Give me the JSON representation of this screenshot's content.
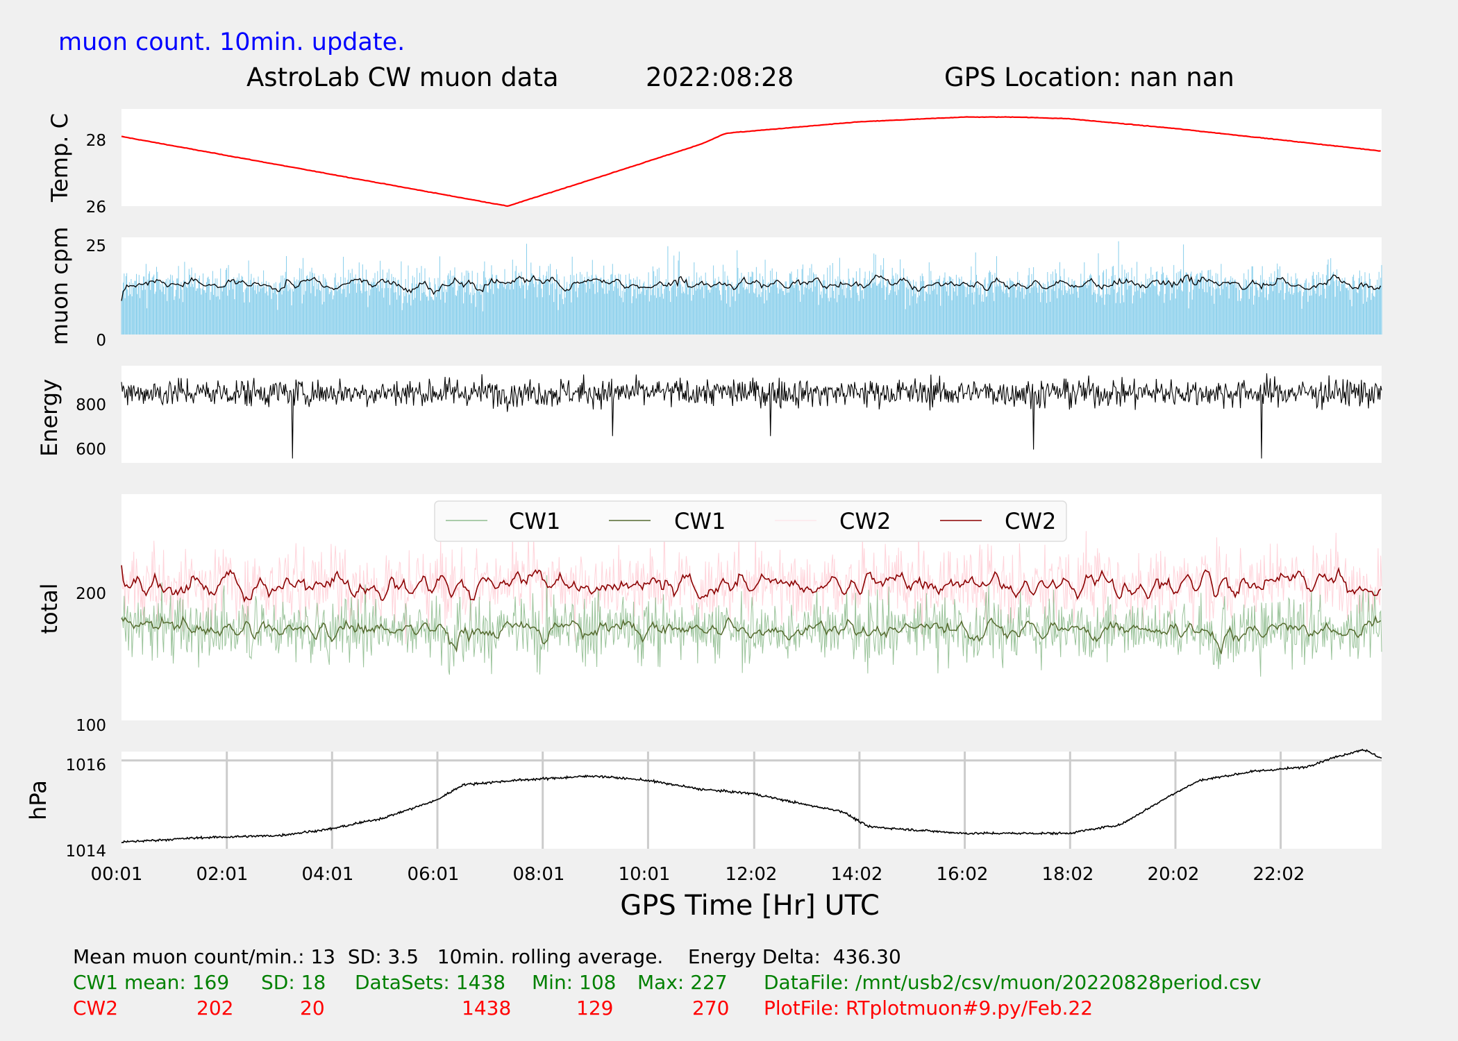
{
  "header": {
    "update_note": "muon count.  10min. update.",
    "title_left": "AstroLab CW muon data",
    "title_date": "2022:08:28",
    "title_gps": "GPS Location: nan   nan"
  },
  "xaxis": {
    "label": "GPS Time  [Hr] UTC",
    "ticks": [
      "00:01",
      "02:01",
      "04:01",
      "06:01",
      "08:01",
      "10:01",
      "12:02",
      "14:02",
      "16:02",
      "18:02",
      "20:02",
      "22:02"
    ]
  },
  "footer": {
    "line1": "Mean muon count/min.: 13  SD: 3.5   10min. rolling average.    Energy Delta:  436.30",
    "cw1_mean": "CW1 mean: 169",
    "cw1_sd": "SD: 18",
    "cw1_datasets": "DataSets: 1438",
    "cw1_min": "Min: 108",
    "cw1_max": "Max: 227",
    "datafile": "DataFile: /mnt/usb2/csv/muon/20220828period.csv",
    "cw2_label": "CW2",
    "cw2_mean": "202",
    "cw2_sd": "20",
    "cw2_datasets": "1438",
    "cw2_min": "129",
    "cw2_max": "270",
    "plotfile": "PlotFile: RTplotmuon#9.py/Feb.22"
  },
  "colors": {
    "background": "#f0f0f0",
    "axes_bg": "#ffffff",
    "note_blue": "#0000ff",
    "temp_red": "#ff0000",
    "muon_blue": "#87ceeb",
    "cw1_light": "#8fbc8f",
    "cw1_dark": "#556b2f",
    "cw2_light": "#ffc0cb",
    "cw2_dark": "#8b0000",
    "footer_green": "#008000",
    "footer_red": "#ff0000",
    "grid": "#cccccc"
  },
  "chart_data": [
    {
      "type": "line",
      "id": "temp",
      "ylabel": "Temp. C",
      "ylim": [
        26,
        29.0
      ],
      "yticks": [
        "26",
        "28"
      ],
      "x_range_hours": [
        0.0167,
        23.95
      ],
      "x": [
        0.0167,
        7.35,
        9.0,
        11.0,
        11.5,
        14.0,
        16.0,
        17.0,
        18.0,
        20.0,
        22.0,
        23.95
      ],
      "y": [
        28.15,
        26.0,
        26.85,
        27.9,
        28.25,
        28.6,
        28.75,
        28.75,
        28.7,
        28.4,
        28.05,
        27.7
      ],
      "series": [
        {
          "name": "",
          "color": "#ff0000"
        }
      ]
    },
    {
      "type": "bar",
      "id": "muon",
      "ylabel": "muon cpm",
      "ylim": [
        0,
        25
      ],
      "yticks": [
        "0",
        "25"
      ],
      "series": [
        {
          "name": "",
          "kind": "bars",
          "color": "#87ceeb",
          "mean": 13,
          "sd": 3.5,
          "count": 1438
        },
        {
          "name": "",
          "kind": "line",
          "color": "#000000",
          "desc": "10min. rolling average",
          "mean": 13
        }
      ]
    },
    {
      "type": "line",
      "id": "energy",
      "ylabel": "Energy",
      "ylim": [
        540,
        975
      ],
      "yticks": [
        "600",
        "800"
      ],
      "series": [
        {
          "name": "",
          "color": "#000000",
          "center": 855,
          "spread": 45
        }
      ]
    },
    {
      "type": "line",
      "id": "total",
      "ylabel": "total",
      "ylim": [
        100,
        270
      ],
      "yticks": [
        "100",
        "200"
      ],
      "legend": {
        "placement": "top-center",
        "entries": [
          "CW1",
          "CW1",
          "CW2",
          "CW2"
        ]
      },
      "series": [
        {
          "name": "CW1",
          "color": "#8fbc8f",
          "kind": "raw",
          "mean": 169,
          "sd": 18,
          "min": 108,
          "max": 227
        },
        {
          "name": "CW1",
          "color": "#556b2f",
          "kind": "rolling",
          "mean": 169
        },
        {
          "name": "CW2",
          "color": "#ffc0cb",
          "kind": "raw",
          "mean": 202,
          "sd": 20,
          "min": 129,
          "max": 270
        },
        {
          "name": "CW2",
          "color": "#8b0000",
          "kind": "rolling",
          "mean": 202
        }
      ]
    },
    {
      "type": "line",
      "id": "pressure",
      "ylabel": "hPa",
      "ylim": [
        1014,
        1016.2
      ],
      "yticks": [
        "1014",
        "1016"
      ],
      "grid": true,
      "x": [
        0.0167,
        1.5,
        3.0,
        4.0,
        5.0,
        6.0,
        6.5,
        7.5,
        9.0,
        10.0,
        11.0,
        12.0,
        13.0,
        13.7,
        14.2,
        16.0,
        18.0,
        19.0,
        20.0,
        20.5,
        21.5,
        22.5,
        23.0,
        23.6,
        23.95
      ],
      "y": [
        1014.15,
        1014.25,
        1014.3,
        1014.45,
        1014.7,
        1015.1,
        1015.45,
        1015.55,
        1015.65,
        1015.55,
        1015.35,
        1015.25,
        1015.0,
        1014.85,
        1014.5,
        1014.35,
        1014.35,
        1014.55,
        1015.25,
        1015.55,
        1015.75,
        1015.85,
        1016.05,
        1016.25,
        1016.05
      ],
      "series": [
        {
          "name": "",
          "color": "#000000"
        }
      ]
    }
  ]
}
